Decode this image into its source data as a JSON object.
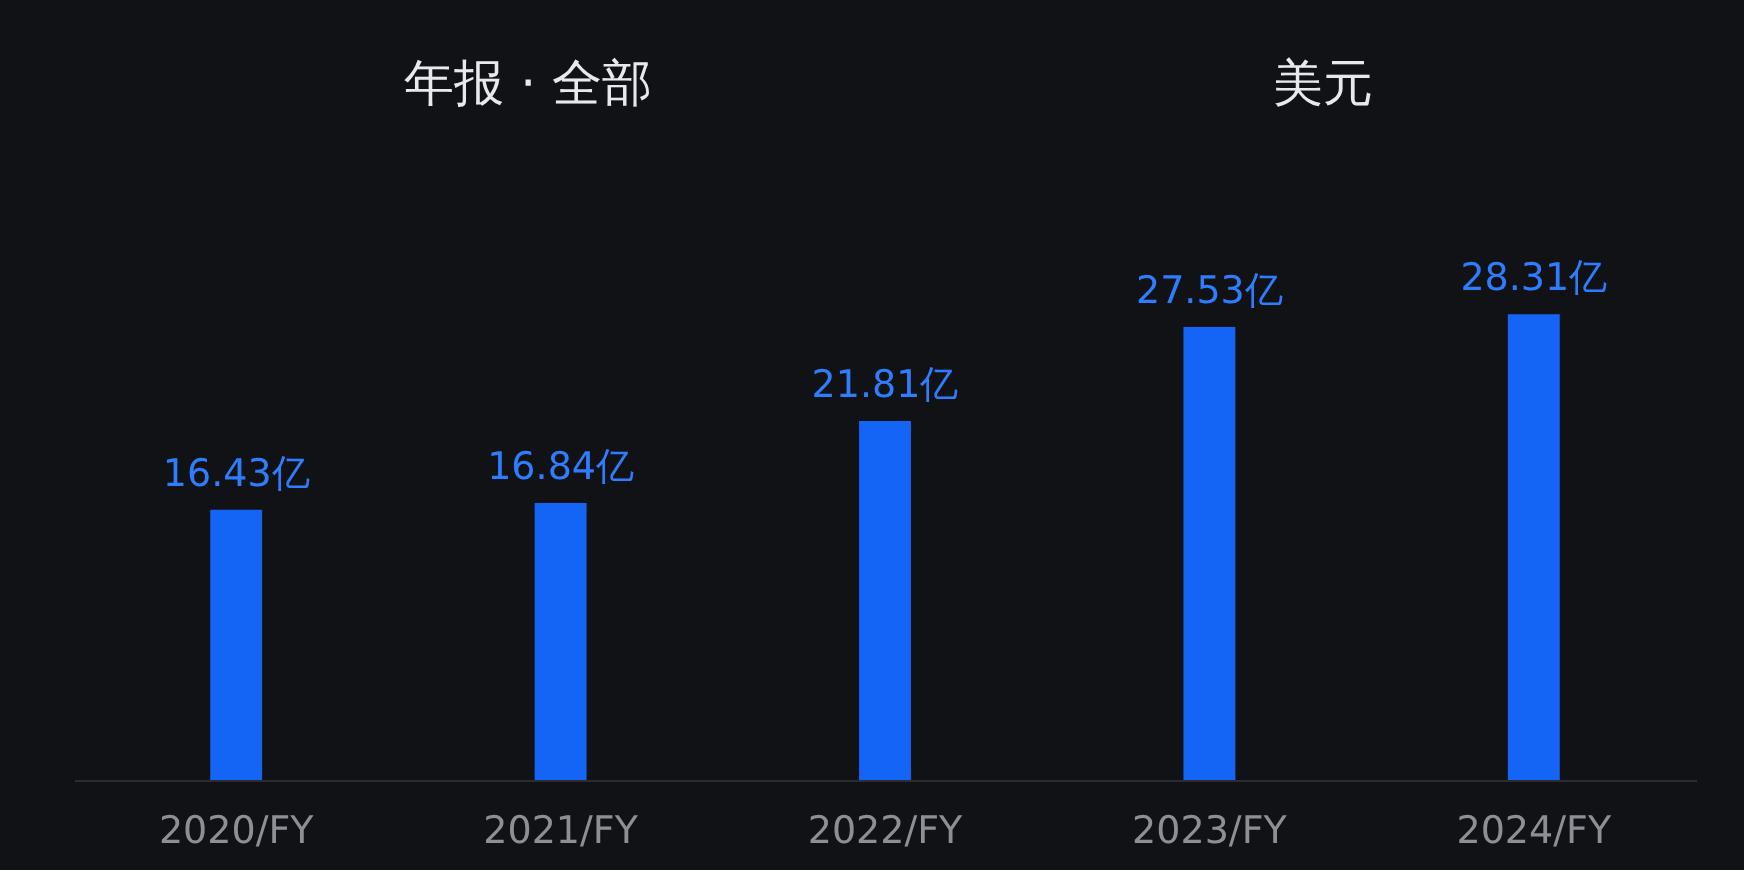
{
  "chart_data": {
    "type": "bar",
    "categories": [
      "2020/FY",
      "2021/FY",
      "2022/FY",
      "2023/FY",
      "2024/FY"
    ],
    "values": [
      16.43,
      16.84,
      21.81,
      27.53,
      28.31
    ],
    "value_labels": [
      "16.43亿",
      "16.84亿",
      "21.81亿",
      "27.53亿",
      "28.31亿"
    ],
    "color": "#1464f6",
    "annotations": [
      "年报 · 全部",
      "美元"
    ],
    "grid": false,
    "tick_labels": "x"
  }
}
